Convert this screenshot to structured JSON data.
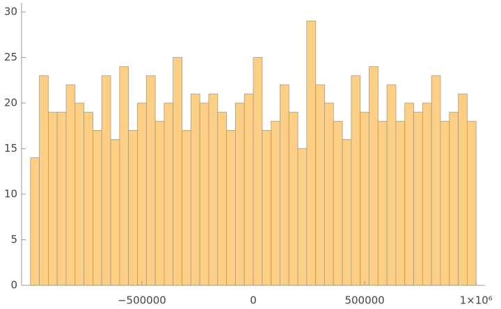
{
  "chart_data": {
    "type": "histogram",
    "bins": [
      -1000000,
      -960000,
      -920000,
      -880000,
      -840000,
      -800000,
      -760000,
      -720000,
      -680000,
      -640000,
      -600000,
      -560000,
      -520000,
      -480000,
      -440000,
      -400000,
      -360000,
      -320000,
      -280000,
      -240000,
      -200000,
      -160000,
      -120000,
      -80000,
      -40000,
      0,
      40000,
      80000,
      120000,
      160000,
      200000,
      240000,
      280000,
      320000,
      360000,
      400000,
      440000,
      480000,
      520000,
      560000,
      600000,
      640000,
      680000,
      720000,
      760000,
      800000,
      840000,
      880000,
      920000,
      960000,
      1000000
    ],
    "values": [
      14,
      23,
      19,
      19,
      22,
      20,
      19,
      17,
      23,
      16,
      24,
      17,
      20,
      23,
      18,
      20,
      25,
      17,
      21,
      20,
      21,
      19,
      17,
      20,
      21,
      25,
      17,
      18,
      22,
      19,
      15,
      29,
      22,
      20,
      18,
      16,
      23,
      19,
      24,
      18,
      22,
      18,
      20,
      19,
      20,
      23,
      18,
      19,
      21,
      18
    ],
    "color": "#fdcf84",
    "edge_color": "#a9997f",
    "xlim": [
      -1040000,
      1040000
    ],
    "ylim": [
      0,
      31
    ],
    "xticks": [
      {
        "value": -500000,
        "label": "−500000"
      },
      0,
      500000,
      {
        "value": 1000000,
        "label": "1×10⁶"
      }
    ],
    "yticks": [
      0,
      5,
      10,
      15,
      20,
      25,
      30
    ]
  }
}
